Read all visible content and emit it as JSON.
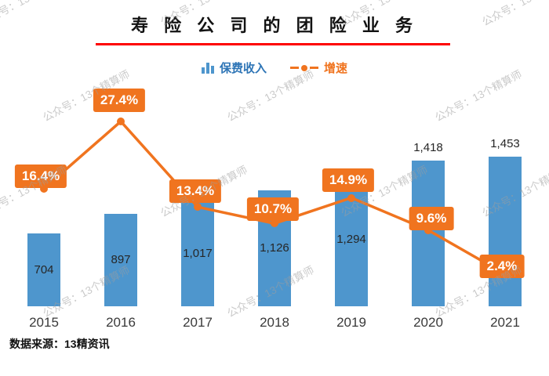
{
  "title": {
    "text": "寿 险 公 司 的 团 险 业 务"
  },
  "legend": {
    "bars_label": "保费收入",
    "line_label": "增速"
  },
  "source_note": "数据来源：13精资讯",
  "watermark": {
    "text": "公众号：13个精算师"
  },
  "colors": {
    "bar": "#4e96cd",
    "line": "#f0741f",
    "growth_box_bg": "#f0741f",
    "growth_box_text": "#ffffff",
    "title_underline": "#fe0000",
    "bar_value_text": "#262626",
    "axis_text": "#3a3a3a",
    "legend_bar_text": "#2e75b6",
    "watermark_text_color": "#9e9e9e"
  },
  "chart_data": {
    "type": "combo (bar + line)",
    "title": "寿险公司的团险业务",
    "categories": [
      "2015",
      "2016",
      "2017",
      "2018",
      "2019",
      "2020",
      "2021"
    ],
    "series": [
      {
        "name": "保费收入",
        "kind": "bar",
        "values": [
          704,
          897,
          1017,
          1126,
          1294,
          1418,
          1453
        ],
        "value_labels": [
          "704",
          "897",
          "1,017",
          "1,126",
          "1,294",
          "1,418",
          "1,453"
        ]
      },
      {
        "name": "增速",
        "kind": "line",
        "unit": "%",
        "values": [
          16.4,
          27.4,
          13.4,
          10.7,
          14.9,
          9.6,
          2.4
        ],
        "value_labels": [
          "16.4%",
          "27.4%",
          "13.4%",
          "10.7%",
          "14.9%",
          "9.6%",
          "2.4%"
        ]
      }
    ],
    "x_axis": {
      "labels_visible": true
    },
    "y_axis": {
      "visible": false
    },
    "grid": false,
    "legend_position": "top",
    "value_labels": "on",
    "source": "数据来源：13精资讯"
  }
}
